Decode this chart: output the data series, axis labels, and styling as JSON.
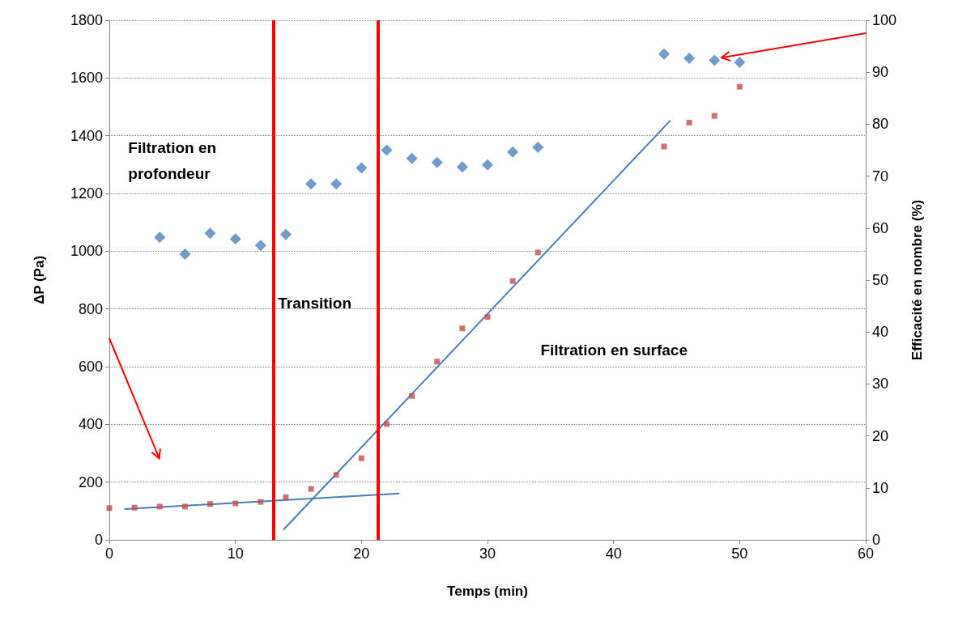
{
  "chart_data": {
    "type": "scatter",
    "xlabel": "Temps (min)",
    "ylabel": "ΔP (Pa)",
    "y2label": "Efficacité en nombre (%)",
    "xlim": [
      0,
      60
    ],
    "xticks": [
      0,
      10,
      20,
      30,
      40,
      50,
      60
    ],
    "ylim": [
      0,
      1800
    ],
    "yticks": [
      0,
      200,
      400,
      600,
      800,
      1000,
      1200,
      1400,
      1600,
      1800
    ],
    "y2lim": [
      0,
      100
    ],
    "y2ticks": [
      0,
      10,
      20,
      30,
      40,
      50,
      60,
      70,
      80,
      90,
      100
    ],
    "grid": "y",
    "series": [
      {
        "marker": "diamond",
        "color": "#4f81bd",
        "x": [
          4,
          6,
          8,
          10,
          12,
          14,
          16,
          18,
          20,
          22,
          24,
          26,
          28,
          30,
          32,
          34,
          44,
          46,
          48,
          50
        ],
        "values": [
          1048,
          990,
          1062,
          1042,
          1020,
          1058,
          1233,
          1233,
          1288,
          1350,
          1321,
          1307,
          1292,
          1299,
          1344,
          1360,
          1683,
          1668,
          1661,
          1654
        ]
      },
      {
        "marker": "square",
        "color": "#c0504d",
        "axis": "y2",
        "x": [
          0,
          2,
          4,
          6,
          8,
          10,
          12,
          14,
          16,
          18,
          20,
          22,
          24,
          26,
          28,
          30,
          32,
          34,
          44,
          46,
          48,
          50
        ],
        "values": [
          6.1,
          6.2,
          6.4,
          6.4,
          6.9,
          7.0,
          7.3,
          8.2,
          9.8,
          12.5,
          15.7,
          22.3,
          27.7,
          34.3,
          40.7,
          42.9,
          49.8,
          55.3,
          75.7,
          80.3,
          81.6,
          87.2
        ]
      },
      {
        "type": "line",
        "marker": "none",
        "color": "#4a7ebb",
        "axis": "y2",
        "x": [
          1.2,
          23
        ],
        "values": [
          5.9,
          8.9
        ]
      },
      {
        "type": "line",
        "marker": "none",
        "color": "#4a7ebb",
        "axis": "y2",
        "x": [
          13.8,
          44.5
        ],
        "values": [
          1.9,
          80.7
        ]
      }
    ],
    "ref_lines": [
      {
        "axis": "x",
        "value": 13,
        "color": "#ff0000"
      },
      {
        "axis": "x",
        "value": 21.3,
        "color": "#ff0000"
      }
    ],
    "annotations": [
      "Filtration en\nprofondeur",
      "Transition",
      "Filtration en surface"
    ]
  }
}
